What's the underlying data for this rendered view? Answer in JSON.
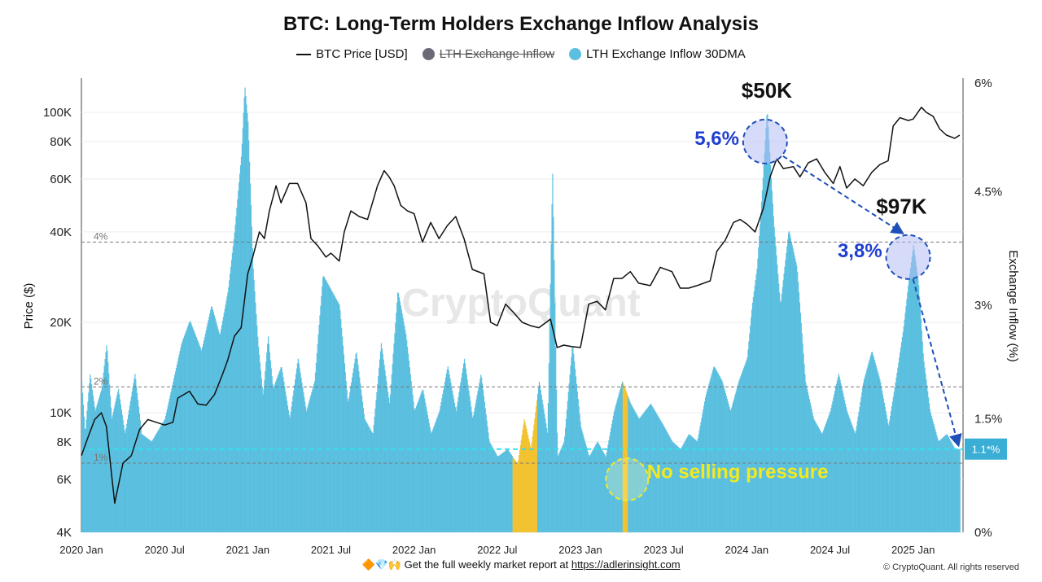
{
  "chart_data": {
    "type": "area",
    "title": "BTC: Long-Term Holders Exchange Inflow Analysis",
    "ylabel_left": "Price ($)",
    "ylabel_right": "Exchange Inflow (%)",
    "left_axis_scale": "log",
    "ylim_left": [
      4000,
      130000
    ],
    "ylim_right": [
      0,
      6
    ],
    "left_ticks": [
      {
        "v": 4000,
        "label": "4K"
      },
      {
        "v": 6000,
        "label": "6K"
      },
      {
        "v": 8000,
        "label": "8K"
      },
      {
        "v": 10000,
        "label": "10K"
      },
      {
        "v": 20000,
        "label": "20K"
      },
      {
        "v": 40000,
        "label": "40K"
      },
      {
        "v": 60000,
        "label": "60K"
      },
      {
        "v": 80000,
        "label": "80K"
      },
      {
        "v": 100000,
        "label": "100K"
      }
    ],
    "right_ticks": [
      {
        "v": 0,
        "label": "0%"
      },
      {
        "v": 1.5,
        "label": "1.5%"
      },
      {
        "v": 3,
        "label": "3%"
      },
      {
        "v": 4.5,
        "label": "4.5%"
      },
      {
        "v": 6,
        "label": "6%"
      }
    ],
    "x_ticks": [
      {
        "t": 2020.0,
        "label": "2020 Jan"
      },
      {
        "t": 2020.5,
        "label": "2020 Jul"
      },
      {
        "t": 2021.0,
        "label": "2021 Jan"
      },
      {
        "t": 2021.5,
        "label": "2021 Jul"
      },
      {
        "t": 2022.0,
        "label": "2022 Jan"
      },
      {
        "t": 2022.5,
        "label": "2022 Jul"
      },
      {
        "t": 2023.0,
        "label": "2023 Jan"
      },
      {
        "t": 2023.5,
        "label": "2023 Jul"
      },
      {
        "t": 2024.0,
        "label": "2024 Jan"
      },
      {
        "t": 2024.5,
        "label": "2024 Jul"
      },
      {
        "t": 2025.0,
        "label": "2025 Jan"
      }
    ],
    "xlim": [
      2020.0,
      2025.3
    ],
    "grid": true,
    "legend_position": "top",
    "legend": [
      {
        "name": "BTC Price [USD]",
        "marker": "line",
        "color": "#111111",
        "hidden": false
      },
      {
        "name": "LTH Exchange Inflow",
        "marker": "dot",
        "color": "#6b6b78",
        "hidden": true
      },
      {
        "name": "LTH Exchange Inflow 30DMA",
        "marker": "dot",
        "color": "#5bbfdf",
        "hidden": false
      }
    ],
    "series": [
      {
        "name": "BTC Price [USD]",
        "axis": "left",
        "color": "#111111",
        "points": [
          [
            2020.0,
            7200
          ],
          [
            2020.04,
            8300
          ],
          [
            2020.08,
            9500
          ],
          [
            2020.12,
            10000
          ],
          [
            2020.15,
            9000
          ],
          [
            2020.2,
            5000
          ],
          [
            2020.25,
            6800
          ],
          [
            2020.3,
            7200
          ],
          [
            2020.35,
            8800
          ],
          [
            2020.4,
            9500
          ],
          [
            2020.45,
            9300
          ],
          [
            2020.5,
            9100
          ],
          [
            2020.55,
            9300
          ],
          [
            2020.58,
            11200
          ],
          [
            2020.65,
            11800
          ],
          [
            2020.7,
            10700
          ],
          [
            2020.75,
            10600
          ],
          [
            2020.8,
            11500
          ],
          [
            2020.85,
            13500
          ],
          [
            2020.88,
            15000
          ],
          [
            2020.92,
            18000
          ],
          [
            2020.96,
            19200
          ],
          [
            2021.0,
            29000
          ],
          [
            2021.03,
            33000
          ],
          [
            2021.07,
            40000
          ],
          [
            2021.1,
            38000
          ],
          [
            2021.13,
            47000
          ],
          [
            2021.17,
            57000
          ],
          [
            2021.2,
            50000
          ],
          [
            2021.25,
            58000
          ],
          [
            2021.3,
            58000
          ],
          [
            2021.35,
            50000
          ],
          [
            2021.38,
            38000
          ],
          [
            2021.42,
            36000
          ],
          [
            2021.47,
            33000
          ],
          [
            2021.5,
            34000
          ],
          [
            2021.55,
            32000
          ],
          [
            2021.58,
            40000
          ],
          [
            2021.62,
            47000
          ],
          [
            2021.67,
            45000
          ],
          [
            2021.72,
            44000
          ],
          [
            2021.78,
            57000
          ],
          [
            2021.82,
            64000
          ],
          [
            2021.85,
            61000
          ],
          [
            2021.88,
            57000
          ],
          [
            2021.92,
            49000
          ],
          [
            2021.96,
            47000
          ],
          [
            2022.0,
            46000
          ],
          [
            2022.05,
            37000
          ],
          [
            2022.1,
            43000
          ],
          [
            2022.15,
            38000
          ],
          [
            2022.2,
            42000
          ],
          [
            2022.25,
            45000
          ],
          [
            2022.3,
            38000
          ],
          [
            2022.35,
            30000
          ],
          [
            2022.42,
            29000
          ],
          [
            2022.46,
            20000
          ],
          [
            2022.5,
            19500
          ],
          [
            2022.55,
            23000
          ],
          [
            2022.6,
            21500
          ],
          [
            2022.65,
            20000
          ],
          [
            2022.7,
            19500
          ],
          [
            2022.75,
            19200
          ],
          [
            2022.82,
            20500
          ],
          [
            2022.86,
            16500
          ],
          [
            2022.9,
            16800
          ],
          [
            2022.95,
            16600
          ],
          [
            2023.0,
            16500
          ],
          [
            2023.05,
            23000
          ],
          [
            2023.1,
            23500
          ],
          [
            2023.15,
            22000
          ],
          [
            2023.2,
            28000
          ],
          [
            2023.25,
            28000
          ],
          [
            2023.3,
            29500
          ],
          [
            2023.35,
            27000
          ],
          [
            2023.42,
            26500
          ],
          [
            2023.48,
            30500
          ],
          [
            2023.55,
            29500
          ],
          [
            2023.6,
            26000
          ],
          [
            2023.65,
            26000
          ],
          [
            2023.7,
            26500
          ],
          [
            2023.78,
            27500
          ],
          [
            2023.82,
            34500
          ],
          [
            2023.87,
            37500
          ],
          [
            2023.92,
            43000
          ],
          [
            2023.96,
            44000
          ],
          [
            2024.0,
            42500
          ],
          [
            2024.05,
            40000
          ],
          [
            2024.1,
            48000
          ],
          [
            2024.14,
            61000
          ],
          [
            2024.18,
            70000
          ],
          [
            2024.22,
            65000
          ],
          [
            2024.28,
            66000
          ],
          [
            2024.32,
            61000
          ],
          [
            2024.37,
            68000
          ],
          [
            2024.42,
            70000
          ],
          [
            2024.47,
            63000
          ],
          [
            2024.52,
            58000
          ],
          [
            2024.56,
            66000
          ],
          [
            2024.6,
            56000
          ],
          [
            2024.65,
            60000
          ],
          [
            2024.7,
            57000
          ],
          [
            2024.75,
            63000
          ],
          [
            2024.8,
            67000
          ],
          [
            2024.85,
            69000
          ],
          [
            2024.88,
            90000
          ],
          [
            2024.92,
            96000
          ],
          [
            2024.97,
            94000
          ],
          [
            2025.0,
            95000
          ],
          [
            2025.05,
            104000
          ],
          [
            2025.08,
            100000
          ],
          [
            2025.12,
            97000
          ],
          [
            2025.16,
            88000
          ],
          [
            2025.2,
            84000
          ],
          [
            2025.25,
            82000
          ],
          [
            2025.28,
            84000
          ]
        ]
      },
      {
        "name": "LTH Exchange Inflow 30DMA",
        "axis": "right",
        "color": "#5bbfdf",
        "points": [
          [
            2020.0,
            2.0
          ],
          [
            2020.02,
            1.3
          ],
          [
            2020.05,
            2.1
          ],
          [
            2020.08,
            1.6
          ],
          [
            2020.12,
            1.9
          ],
          [
            2020.15,
            2.5
          ],
          [
            2020.18,
            1.5
          ],
          [
            2020.22,
            1.9
          ],
          [
            2020.26,
            1.3
          ],
          [
            2020.32,
            2.1
          ],
          [
            2020.36,
            1.3
          ],
          [
            2020.42,
            1.2
          ],
          [
            2020.5,
            1.5
          ],
          [
            2020.55,
            2.0
          ],
          [
            2020.6,
            2.5
          ],
          [
            2020.65,
            2.8
          ],
          [
            2020.72,
            2.4
          ],
          [
            2020.78,
            3.0
          ],
          [
            2020.83,
            2.6
          ],
          [
            2020.88,
            3.2
          ],
          [
            2020.92,
            4.0
          ],
          [
            2020.96,
            5.0
          ],
          [
            2020.98,
            5.9
          ],
          [
            2021.0,
            5.4
          ],
          [
            2021.03,
            3.5
          ],
          [
            2021.06,
            2.5
          ],
          [
            2021.09,
            1.8
          ],
          [
            2021.12,
            2.6
          ],
          [
            2021.15,
            1.9
          ],
          [
            2021.2,
            2.2
          ],
          [
            2021.25,
            1.5
          ],
          [
            2021.3,
            2.3
          ],
          [
            2021.35,
            1.6
          ],
          [
            2021.4,
            2.0
          ],
          [
            2021.45,
            3.4
          ],
          [
            2021.5,
            3.2
          ],
          [
            2021.55,
            3.0
          ],
          [
            2021.6,
            1.7
          ],
          [
            2021.65,
            2.4
          ],
          [
            2021.7,
            1.5
          ],
          [
            2021.75,
            1.3
          ],
          [
            2021.8,
            2.5
          ],
          [
            2021.85,
            1.7
          ],
          [
            2021.9,
            3.2
          ],
          [
            2021.95,
            2.6
          ],
          [
            2022.0,
            1.6
          ],
          [
            2022.05,
            1.9
          ],
          [
            2022.1,
            1.3
          ],
          [
            2022.15,
            1.6
          ],
          [
            2022.2,
            2.2
          ],
          [
            2022.25,
            1.6
          ],
          [
            2022.3,
            2.3
          ],
          [
            2022.35,
            1.5
          ],
          [
            2022.4,
            2.1
          ],
          [
            2022.45,
            1.2
          ],
          [
            2022.5,
            1.0
          ],
          [
            2022.56,
            1.1
          ],
          [
            2022.62,
            0.9
          ],
          [
            2022.66,
            1.5
          ],
          [
            2022.7,
            1.1
          ],
          [
            2022.75,
            2.0
          ],
          [
            2022.8,
            1.3
          ],
          [
            2022.83,
            4.8
          ],
          [
            2022.86,
            1.0
          ],
          [
            2022.9,
            1.2
          ],
          [
            2022.95,
            2.5
          ],
          [
            2023.0,
            1.4
          ],
          [
            2023.05,
            1.0
          ],
          [
            2023.1,
            1.2
          ],
          [
            2023.15,
            1.0
          ],
          [
            2023.2,
            1.6
          ],
          [
            2023.25,
            2.0
          ],
          [
            2023.3,
            1.7
          ],
          [
            2023.35,
            1.5
          ],
          [
            2023.42,
            1.7
          ],
          [
            2023.5,
            1.4
          ],
          [
            2023.55,
            1.2
          ],
          [
            2023.6,
            1.1
          ],
          [
            2023.65,
            1.3
          ],
          [
            2023.7,
            1.2
          ],
          [
            2023.75,
            1.8
          ],
          [
            2023.8,
            2.2
          ],
          [
            2023.85,
            2.0
          ],
          [
            2023.9,
            1.6
          ],
          [
            2023.95,
            2.0
          ],
          [
            2024.0,
            2.3
          ],
          [
            2024.03,
            3.0
          ],
          [
            2024.06,
            3.5
          ],
          [
            2024.09,
            4.5
          ],
          [
            2024.12,
            5.6
          ],
          [
            2024.16,
            4.1
          ],
          [
            2024.2,
            3.0
          ],
          [
            2024.25,
            4.0
          ],
          [
            2024.3,
            3.5
          ],
          [
            2024.35,
            2.0
          ],
          [
            2024.4,
            1.5
          ],
          [
            2024.45,
            1.3
          ],
          [
            2024.5,
            1.6
          ],
          [
            2024.55,
            2.1
          ],
          [
            2024.6,
            1.6
          ],
          [
            2024.65,
            1.3
          ],
          [
            2024.7,
            2.0
          ],
          [
            2024.75,
            2.4
          ],
          [
            2024.8,
            2.0
          ],
          [
            2024.85,
            1.4
          ],
          [
            2024.9,
            2.1
          ],
          [
            2024.94,
            2.7
          ],
          [
            2024.97,
            3.3
          ],
          [
            2025.0,
            3.8
          ],
          [
            2025.03,
            3.3
          ],
          [
            2025.06,
            2.3
          ],
          [
            2025.1,
            1.6
          ],
          [
            2025.15,
            1.2
          ],
          [
            2025.2,
            1.3
          ],
          [
            2025.25,
            1.1
          ],
          [
            2025.28,
            1.1
          ]
        ]
      }
    ],
    "low_inflow_highlights": [
      {
        "from": 2022.59,
        "to": 2022.74,
        "color": "#f2c230"
      },
      {
        "from": 2023.25,
        "to": 2023.285,
        "color": "#f2c230"
      }
    ],
    "reference_lines": [
      {
        "axis": "left",
        "value": 37000,
        "label": "4%"
      },
      {
        "axis": "left",
        "value": 12200,
        "label": "2%"
      },
      {
        "axis": "left",
        "value": 6800,
        "label": "1%"
      }
    ],
    "threshold_line": {
      "axis": "right",
      "value": 1.1,
      "color": "#33e0ee",
      "label": "1.1*%"
    },
    "annotations": [
      {
        "text": "$50K",
        "t": 2024.12,
        "y": 112000
      },
      {
        "text": "5,6%",
        "t": 2023.82,
        "y": 78000
      },
      {
        "text": "$97K",
        "t": 2024.93,
        "y": 46000
      },
      {
        "text": "3,8%",
        "t": 2024.68,
        "y": 33000
      },
      {
        "text": "No selling pressure",
        "t": 2023.4,
        "y": 6050
      }
    ],
    "circles": [
      {
        "t": 2024.11,
        "y": 80000
      },
      {
        "t": 2024.97,
        "y": 33000
      },
      {
        "t": 2023.28,
        "y": 6000
      }
    ],
    "watermark": "CryptoQuant"
  },
  "footer": {
    "icons": "🔶💎🙌",
    "text": "Get the full weekly market report at ",
    "link": "https://adlerinsight.com"
  },
  "copyright": "© CryptoQuant. All rights reserved"
}
